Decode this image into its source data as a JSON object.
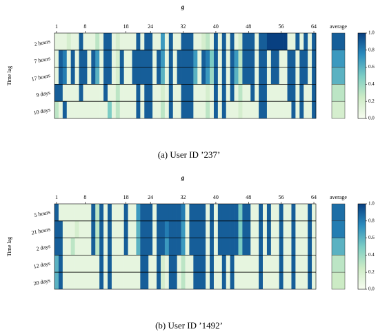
{
  "chart_data": [
    {
      "type": "heatmap",
      "title": "g",
      "xlim": [
        1,
        64
      ],
      "xticks": [
        1,
        8,
        18,
        24,
        32,
        40,
        48,
        56,
        64
      ],
      "ylabel": "Time lag",
      "rows": [
        "2 hours",
        "7 hours",
        "17 hours",
        "9 days",
        "10 days"
      ],
      "values": [
        [
          0.1,
          0.1,
          0.1,
          0.2,
          0.1,
          0.1,
          0.9,
          0.1,
          0.1,
          0.1,
          0.3,
          0.1,
          0.9,
          0.9,
          0.1,
          0.2,
          0.1,
          0.1,
          0.1,
          0.1,
          0.9,
          0.1,
          0.9,
          0.9,
          0.1,
          0.1,
          0.7,
          0.1,
          0.9,
          0.1,
          0.1,
          0.9,
          0.9,
          0.9,
          0.1,
          0.1,
          0.2,
          0.3,
          0.1,
          0.9,
          0.1,
          0.9,
          0.1,
          0.9,
          0.1,
          0.2,
          0.9,
          0.9,
          0.9,
          0.1,
          0.9,
          0.9,
          1,
          1,
          1,
          1,
          1,
          0.1,
          0.1,
          0.9,
          0.1,
          0.9,
          0.1,
          0.9
        ],
        [
          0.1,
          0.9,
          0.8,
          0.1,
          0.9,
          0.1,
          0.9,
          0.9,
          0.1,
          0.9,
          0.7,
          0.1,
          0.9,
          0.9,
          0.1,
          0.2,
          0.9,
          0.1,
          0.1,
          0.9,
          0.9,
          0.9,
          0.9,
          0.9,
          0.1,
          0.9,
          0.7,
          0.1,
          0.9,
          0.1,
          0.9,
          0.9,
          0.9,
          0.9,
          0.7,
          0.1,
          0.9,
          0.8,
          0.5,
          0.9,
          0.1,
          0.9,
          0.1,
          0.9,
          0.7,
          0.3,
          0.9,
          0.9,
          0.9,
          0.1,
          0.9,
          0.9,
          0.1,
          0.9,
          0.9,
          0.1,
          0.1,
          0.9,
          0.9,
          0.1,
          0.9,
          0.9,
          0.1,
          0.9
        ],
        [
          0.1,
          0.9,
          0.8,
          0.1,
          0.9,
          0.1,
          0.9,
          0.9,
          0.1,
          0.9,
          0.6,
          0.1,
          0.9,
          0.9,
          0.1,
          0.2,
          0.9,
          0.1,
          0.1,
          0.9,
          0.9,
          0.9,
          0.9,
          0.9,
          0.1,
          0.9,
          0.6,
          0.1,
          0.9,
          0.1,
          0.9,
          0.9,
          0.9,
          0.9,
          0.6,
          0.1,
          0.9,
          0.7,
          0.4,
          0.9,
          0.1,
          0.9,
          0.1,
          0.9,
          0.6,
          0.3,
          0.9,
          0.9,
          0.9,
          0.1,
          0.9,
          0.9,
          0.1,
          0.9,
          0.9,
          0.1,
          0.1,
          0.9,
          0.9,
          0.1,
          0.9,
          0.9,
          0.1,
          0.9
        ],
        [
          0.9,
          0.9,
          0.1,
          0.1,
          0.1,
          0.1,
          0.9,
          0.1,
          0.1,
          0.1,
          0.1,
          0.1,
          0.9,
          0.1,
          0.1,
          0.3,
          0.1,
          0.1,
          0.1,
          0.1,
          0.9,
          0.1,
          0.9,
          0.9,
          0.1,
          0.1,
          0.2,
          0.1,
          0.9,
          0.1,
          0.1,
          0.9,
          0.9,
          0.9,
          0.1,
          0.1,
          0.1,
          0.2,
          0.1,
          0.9,
          0.1,
          0.9,
          0.1,
          0.9,
          0.1,
          0.3,
          0.1,
          0.1,
          0.9,
          0.1,
          0.9,
          0.9,
          0.1,
          0.1,
          0.1,
          0.1,
          0.1,
          0.9,
          0.9,
          0.1,
          0.9,
          0.1,
          0.1,
          0.9
        ],
        [
          0.3,
          0.1,
          0.9,
          0.1,
          0.1,
          0.1,
          0.1,
          0.1,
          0.1,
          0.1,
          0.1,
          0.1,
          0.1,
          0.5,
          0.1,
          0.3,
          0.1,
          0.1,
          0.1,
          0.1,
          0.9,
          0.1,
          0.9,
          0.9,
          0.1,
          0.1,
          0.3,
          0.1,
          0.9,
          0.1,
          0.1,
          0.9,
          0.9,
          0.9,
          0.1,
          0.1,
          0.1,
          0.3,
          0.1,
          0.9,
          0.1,
          0.9,
          0.1,
          0.1,
          0.1,
          0.2,
          0.1,
          0.1,
          0.1,
          0.1,
          0.9,
          0.9,
          0.1,
          0.1,
          0.1,
          0.1,
          0.1,
          0.1,
          0.9,
          0.1,
          0.9,
          0.1,
          0.1,
          0.9
        ]
      ],
      "average_label": "average",
      "average": [
        0.9,
        0.7,
        0.6,
        0.3,
        0.2
      ],
      "zlim": [
        0,
        1
      ],
      "colorbar_ticks": [
        {
          "value": 0,
          "label": "0.0"
        },
        0.2,
        0.4,
        0.6,
        0.8,
        {
          "value": 1,
          "label": "1.0"
        }
      ],
      "colormap": [
        "#f7fcf0",
        "#ccebc5",
        "#7bccc4",
        "#2b8cbe",
        "#084081"
      ],
      "caption": "(a)  User ID ’237’"
    },
    {
      "type": "heatmap",
      "title": "g",
      "xlim": [
        1,
        64
      ],
      "xticks": [
        1,
        8,
        18,
        24,
        32,
        40,
        48,
        56,
        64
      ],
      "ylabel": "Time lag",
      "rows": [
        "5 hours",
        "21 hours",
        "2 days",
        "12 days",
        "20 days"
      ],
      "values": [
        [
          0.9,
          0.1,
          0.1,
          0.1,
          0.1,
          0.1,
          0.1,
          0.1,
          0.1,
          0.9,
          0.3,
          0.9,
          0.1,
          0.9,
          0.1,
          0.1,
          0.1,
          0.9,
          0.1,
          0.1,
          0.7,
          0.9,
          0.9,
          0.9,
          0.1,
          0.9,
          0.9,
          0.9,
          0.9,
          0.9,
          0.9,
          0.8,
          0.1,
          0.9,
          0.9,
          0.9,
          0.9,
          0.1,
          0.9,
          0.1,
          0.9,
          0.9,
          0.9,
          0.9,
          0.9,
          0.5,
          0.9,
          0.9,
          0.1,
          0.1,
          0.9,
          0.1,
          0.9,
          0.1,
          0.1,
          0.9,
          0.1,
          0.1,
          0.9,
          0.1,
          0.1,
          0.1,
          0.9,
          0.1
        ],
        [
          0.9,
          0.9,
          0.1,
          0.1,
          0.1,
          0.2,
          0.1,
          0.1,
          0.1,
          0.9,
          0.3,
          0.9,
          0.1,
          0.9,
          0.1,
          0.1,
          0.1,
          0.9,
          0.1,
          0.1,
          0.6,
          0.9,
          0.9,
          0.9,
          0.1,
          0.9,
          0.9,
          0.8,
          0.9,
          0.9,
          0.9,
          0.7,
          0.1,
          0.9,
          0.9,
          0.9,
          0.9,
          0.1,
          0.9,
          0.1,
          0.9,
          0.9,
          0.9,
          0.9,
          0.9,
          0.5,
          0.9,
          0.9,
          0.1,
          0.1,
          0.9,
          0.1,
          0.9,
          0.1,
          0.1,
          0.9,
          0.1,
          0.1,
          0.9,
          0.1,
          0.1,
          0.1,
          0.9,
          0.1
        ],
        [
          0.9,
          0.9,
          0.1,
          0.1,
          0.3,
          0.1,
          0.1,
          0.1,
          0.1,
          0.9,
          0.3,
          0.9,
          0.1,
          0.9,
          0.1,
          0.1,
          0.1,
          0.9,
          0.1,
          0.1,
          0.6,
          0.9,
          0.9,
          0.9,
          0.1,
          0.9,
          0.9,
          0.7,
          0.9,
          0.9,
          0.9,
          0.7,
          0.1,
          0.9,
          0.9,
          0.9,
          0.9,
          0.1,
          0.9,
          0.1,
          0.9,
          0.9,
          0.9,
          0.9,
          0.9,
          0.5,
          0.9,
          0.9,
          0.1,
          0.1,
          0.9,
          0.1,
          0.9,
          0.1,
          0.1,
          0.9,
          0.1,
          0.1,
          0.9,
          0.1,
          0.1,
          0.1,
          0.9,
          0.1
        ],
        [
          0.6,
          0.9,
          0.1,
          0.1,
          0.1,
          0.1,
          0.1,
          0.1,
          0.1,
          0.1,
          0.1,
          0.9,
          0.1,
          0.9,
          0.1,
          0.1,
          0.1,
          0.1,
          0.1,
          0.1,
          0.1,
          0.9,
          0.9,
          0.1,
          0.1,
          0.9,
          0.2,
          0.1,
          0.9,
          0.9,
          0.1,
          0.3,
          0.1,
          0.1,
          0.9,
          0.9,
          0.9,
          0.1,
          0.9,
          0.1,
          0.1,
          0.9,
          0.1,
          0.9,
          0.1,
          0.1,
          0.1,
          0.1,
          0.1,
          0.1,
          0.9,
          0.1,
          0.1,
          0.1,
          0.1,
          0.9,
          0.1,
          0.1,
          0.9,
          0.1,
          0.1,
          0.1,
          0.9,
          0.1
        ],
        [
          0.6,
          0.9,
          0.1,
          0.1,
          0.1,
          0.1,
          0.1,
          0.1,
          0.1,
          0.1,
          0.1,
          0.9,
          0.1,
          0.9,
          0.1,
          0.1,
          0.1,
          0.1,
          0.1,
          0.1,
          0.1,
          0.9,
          0.9,
          0.1,
          0.1,
          0.9,
          0.2,
          0.1,
          0.9,
          0.9,
          0.1,
          0.3,
          0.1,
          0.1,
          0.9,
          0.9,
          0.9,
          0.1,
          0.9,
          0.1,
          0.1,
          0.9,
          0.1,
          0.9,
          0.1,
          0.1,
          0.1,
          0.1,
          0.1,
          0.1,
          0.9,
          0.1,
          0.1,
          0.1,
          0.1,
          0.9,
          0.1,
          0.1,
          0.9,
          0.1,
          0.1,
          0.1,
          0.9,
          0.1
        ]
      ],
      "average_label": "average",
      "average": [
        0.85,
        0.8,
        0.6,
        0.3,
        0.25
      ],
      "zlim": [
        0,
        1
      ],
      "colorbar_ticks": [
        {
          "value": 0,
          "label": "0.0"
        },
        0.2,
        0.4,
        0.6,
        0.8,
        {
          "value": 1,
          "label": "1.0"
        }
      ],
      "colormap": [
        "#f7fcf0",
        "#ccebc5",
        "#7bccc4",
        "#2b8cbe",
        "#084081"
      ],
      "caption": "(b)  User ID ’1492’"
    }
  ]
}
